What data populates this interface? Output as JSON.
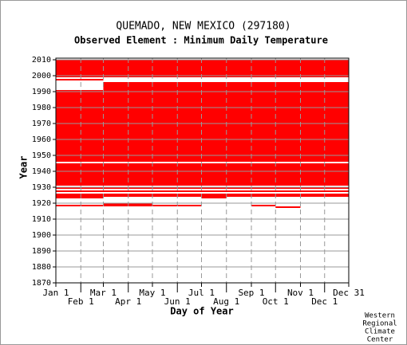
{
  "chart_data": {
    "type": "availability",
    "title": "QUEMADO, NEW MEXICO   (297180)",
    "subtitle": "Observed Element : Minimum Daily Temperature",
    "xlabel": "Day of Year",
    "ylabel": "Year",
    "color": "#ff0000",
    "grid": true,
    "xlim": [
      1,
      365
    ],
    "ylim": [
      1870,
      2011
    ],
    "xticks": [
      {
        "value": 1,
        "label": "Jan 1"
      },
      {
        "value": 32,
        "label": "Feb 1"
      },
      {
        "value": 60,
        "label": "Mar 1"
      },
      {
        "value": 91,
        "label": "Apr 1"
      },
      {
        "value": 121,
        "label": "May 1"
      },
      {
        "value": 152,
        "label": "Jun 1"
      },
      {
        "value": 182,
        "label": "Jul 1"
      },
      {
        "value": 213,
        "label": "Aug 1"
      },
      {
        "value": 244,
        "label": "Sep 1"
      },
      {
        "value": 274,
        "label": "Oct 1"
      },
      {
        "value": 305,
        "label": "Nov 1"
      },
      {
        "value": 335,
        "label": "Dec 1"
      },
      {
        "value": 365,
        "label": "Dec 31"
      }
    ],
    "yticks": [
      1870,
      1880,
      1890,
      1900,
      1910,
      1920,
      1930,
      1940,
      1950,
      1960,
      1970,
      1980,
      1990,
      2000,
      2010
    ],
    "blocks": [
      {
        "years": [
          1918,
          1919
        ],
        "days": [
          1,
          60
        ]
      },
      {
        "years": [
          1918,
          1920
        ],
        "days": [
          60,
          121
        ]
      },
      {
        "years": [
          1918,
          1919
        ],
        "days": [
          121,
          182
        ]
      },
      {
        "years": [
          1918,
          1919
        ],
        "days": [
          244,
          274
        ]
      },
      {
        "years": [
          1917,
          1918
        ],
        "days": [
          274,
          305
        ]
      },
      {
        "years": [
          1923,
          1924
        ],
        "days": [
          1,
          60
        ]
      },
      {
        "years": [
          1923,
          1924
        ],
        "days": [
          182,
          213
        ]
      },
      {
        "years": [
          1924,
          1926
        ],
        "days": [
          1,
          365
        ]
      },
      {
        "years": [
          1927,
          1928
        ],
        "days": [
          1,
          365
        ]
      },
      {
        "years": [
          1929,
          1930
        ],
        "days": [
          1,
          365
        ]
      },
      {
        "years": [
          1931,
          1945
        ],
        "days": [
          1,
          365
        ]
      },
      {
        "years": [
          1946,
          1991
        ],
        "days": [
          1,
          365
        ]
      },
      {
        "years": [
          1991,
          1996
        ],
        "days": [
          60,
          365
        ]
      },
      {
        "years": [
          1997,
          1998
        ],
        "days": [
          1,
          60
        ]
      },
      {
        "years": [
          1999,
          2010
        ],
        "days": [
          1,
          365
        ]
      }
    ],
    "credit": [
      "Western",
      "Regional",
      "Climate",
      "Center"
    ]
  }
}
